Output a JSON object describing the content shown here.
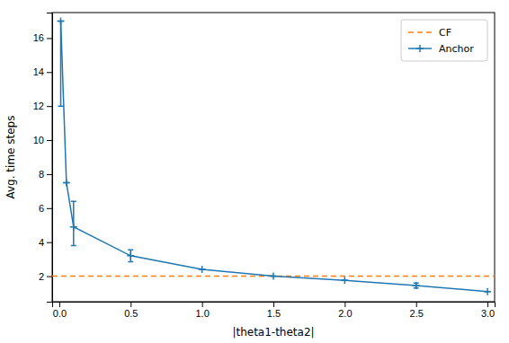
{
  "chart_data": {
    "type": "line",
    "xlabel": "|theta1-theta2|",
    "ylabel": "Avg. time steps",
    "xlim": [
      -0.05,
      3.05
    ],
    "ylim": [
      0.5,
      17.5
    ],
    "xticks": [
      {
        "value": 0.0,
        "label": "0.0"
      },
      0.5,
      {
        "value": 1.0,
        "label": "1.0"
      },
      1.5,
      {
        "value": 2.0,
        "label": "2.0"
      },
      2.5,
      {
        "value": 3.0,
        "label": "3.0"
      }
    ],
    "yticks": [
      2,
      4,
      6,
      8,
      10,
      12,
      14,
      16
    ],
    "legend": "upper-right",
    "series": [
      {
        "name": "CF",
        "type": "hline",
        "color": "#ff7f0e",
        "line_style": "dashed",
        "values": [
          2.0
        ]
      },
      {
        "name": "Anchor",
        "type": "line",
        "color": "#1f77b4",
        "line_style": "solid",
        "marker": "plus",
        "x": [
          0.01,
          0.05,
          0.1,
          0.5,
          1.0,
          1.5,
          2.0,
          2.5,
          3.0
        ],
        "values": [
          17.0,
          7.5,
          4.9,
          3.2,
          2.4,
          2.0,
          1.75,
          1.45,
          1.1
        ],
        "yerr_low": [
          5.0,
          0.0,
          1.1,
          0.35,
          0.0,
          0.0,
          0.0,
          0.15,
          0.0
        ],
        "yerr_high": [
          0.0,
          0.0,
          1.5,
          0.35,
          0.0,
          0.0,
          0.0,
          0.15,
          0.0
        ]
      }
    ]
  }
}
